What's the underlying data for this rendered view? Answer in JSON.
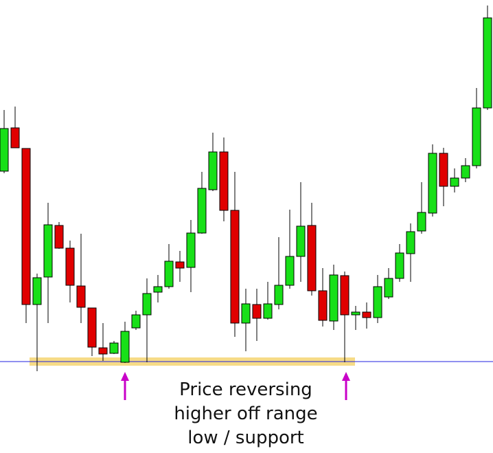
{
  "chart_data": {
    "type": "candlestick",
    "ylim": [
      0,
      659
    ],
    "support_level": 133,
    "up_color": "#18e018",
    "down_color": "#e00000",
    "annotation": [
      "Price reversing",
      "higher off range",
      "low / support"
    ],
    "open": [
      410,
      473,
      443,
      216,
      256,
      331,
      298,
      243,
      211,
      153,
      145,
      132,
      182,
      201,
      234,
      242,
      278,
      270,
      320,
      383,
      438,
      353,
      189,
      216,
      196,
      216,
      244,
      286,
      331,
      236,
      192,
      258,
      201,
      205,
      197,
      227,
      254,
      290,
      323,
      349,
      436,
      388,
      400,
      418,
      502
    ],
    "high": [
      499,
      504,
      443,
      261,
      364,
      336,
      309,
      319,
      211,
      189,
      163,
      191,
      207,
      254,
      259,
      304,
      294,
      339,
      409,
      466,
      459,
      409,
      239,
      239,
      249,
      314,
      354,
      394,
      364,
      269,
      274,
      264,
      214,
      219,
      259,
      269,
      304,
      334,
      394,
      449,
      444,
      414,
      429,
      531,
      651
    ],
    "low": [
      407,
      444,
      189,
      119,
      189,
      297,
      219,
      189,
      141,
      134,
      144,
      131,
      179,
      132,
      219,
      239,
      249,
      234,
      319,
      381,
      337,
      169,
      148,
      163,
      194,
      209,
      239,
      249,
      229,
      184,
      179,
      132,
      179,
      181,
      189,
      224,
      249,
      249,
      319,
      344,
      359,
      379,
      394,
      414,
      499
    ],
    "close": [
      472,
      444,
      216,
      255,
      332,
      298,
      244,
      212,
      154,
      144,
      160,
      177,
      201,
      232,
      242,
      279,
      269,
      320,
      385,
      438,
      353,
      189,
      217,
      196,
      217,
      244,
      286,
      330,
      236,
      193,
      259,
      201,
      205,
      197,
      242,
      254,
      291,
      322,
      350,
      436,
      388,
      400,
      418,
      502,
      633
    ]
  }
}
